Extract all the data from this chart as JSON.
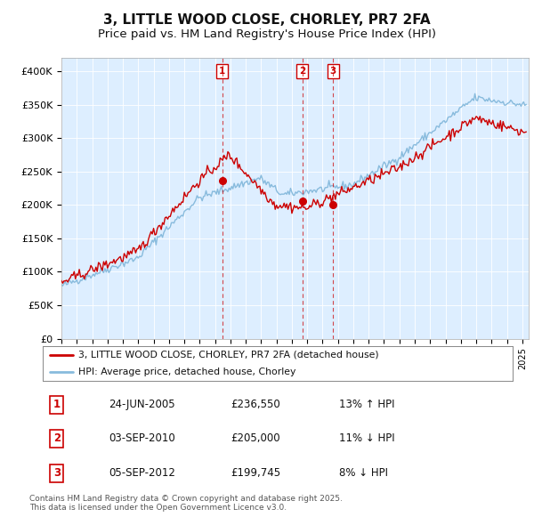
{
  "title": "3, LITTLE WOOD CLOSE, CHORLEY, PR7 2FA",
  "subtitle": "Price paid vs. HM Land Registry's House Price Index (HPI)",
  "title_fontsize": 11,
  "subtitle_fontsize": 9.5,
  "background_color": "#ffffff",
  "plot_bg_color": "#ddeeff",
  "grid_color": "#ffffff",
  "ylim": [
    0,
    420000
  ],
  "yticks": [
    0,
    50000,
    100000,
    150000,
    200000,
    250000,
    300000,
    350000,
    400000
  ],
  "ytick_labels": [
    "£0",
    "£50K",
    "£100K",
    "£150K",
    "£200K",
    "£250K",
    "£300K",
    "£350K",
    "£400K"
  ],
  "sale_dates": [
    "2005-06-24",
    "2010-09-03",
    "2012-09-05"
  ],
  "sale_prices": [
    236550,
    205000,
    199745
  ],
  "sale_labels": [
    "1",
    "2",
    "3"
  ],
  "legend_line1": "3, LITTLE WOOD CLOSE, CHORLEY, PR7 2FA (detached house)",
  "legend_line2": "HPI: Average price, detached house, Chorley",
  "table_entries": [
    {
      "num": "1",
      "date": "24-JUN-2005",
      "price": "£236,550",
      "change": "13% ↑ HPI"
    },
    {
      "num": "2",
      "date": "03-SEP-2010",
      "price": "£205,000",
      "change": "11% ↓ HPI"
    },
    {
      "num": "3",
      "date": "05-SEP-2012",
      "price": "£199,745",
      "change": "8% ↓ HPI"
    }
  ],
  "footnote": "Contains HM Land Registry data © Crown copyright and database right 2025.\nThis data is licensed under the Open Government Licence v3.0.",
  "red_line_color": "#cc0000",
  "blue_line_color": "#88bbdd",
  "vline_color": "#cc0000"
}
